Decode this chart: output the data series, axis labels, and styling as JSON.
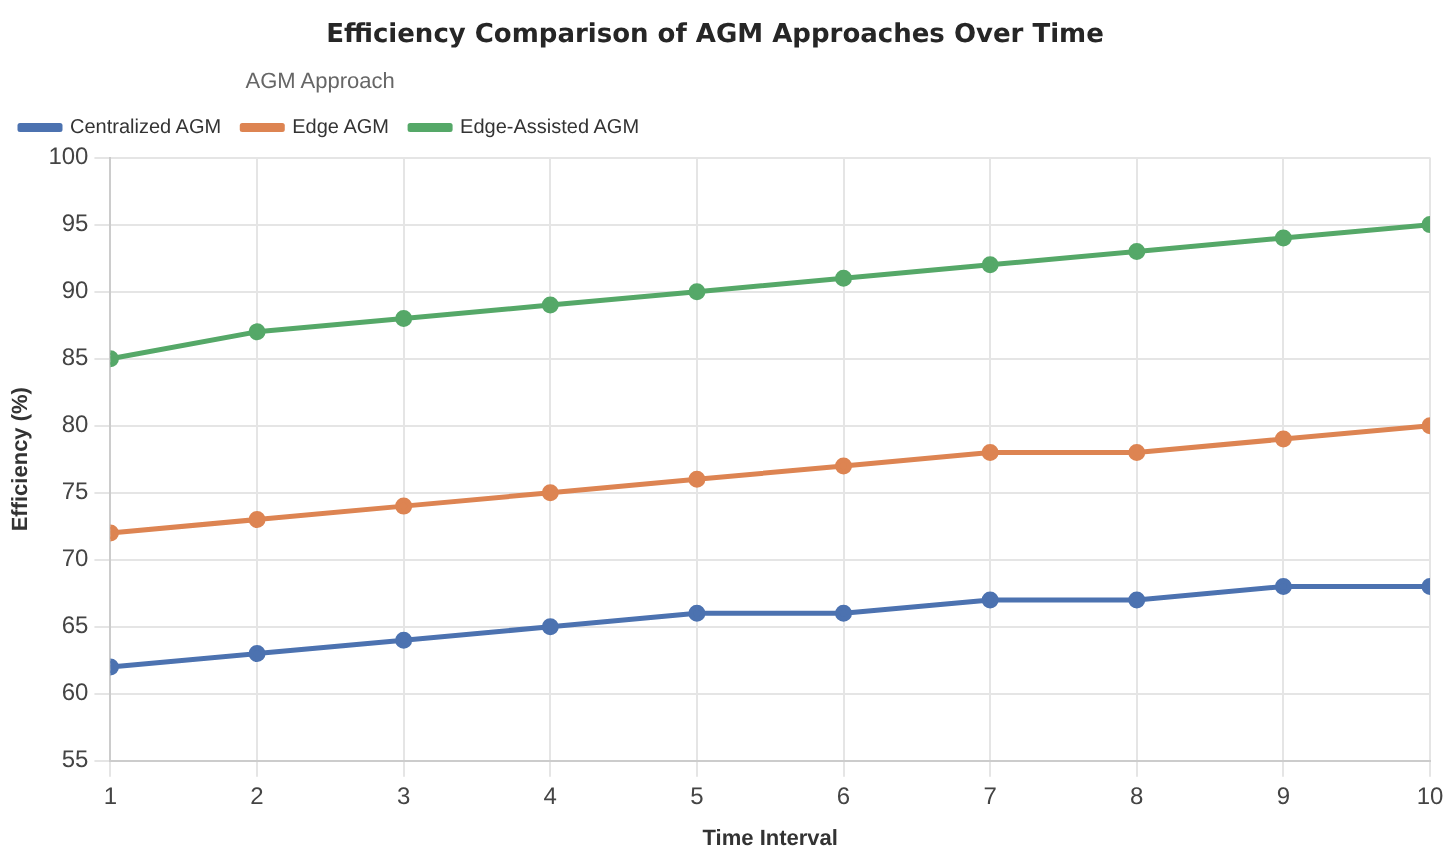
{
  "chart_data": {
    "type": "line",
    "title": "Efficiency Comparison of AGM Approaches Over Time",
    "xlabel": "Time Interval",
    "ylabel": "Efficiency (%)",
    "legend_title": "AGM Approach",
    "x": [
      1,
      2,
      3,
      4,
      5,
      6,
      7,
      8,
      9,
      10
    ],
    "xlim": [
      1,
      10
    ],
    "xticks": [
      1,
      2,
      3,
      4,
      5,
      6,
      7,
      8,
      9,
      10
    ],
    "ylim": [
      55,
      100
    ],
    "yticks": [
      55,
      60,
      65,
      70,
      75,
      80,
      85,
      90,
      95,
      100
    ],
    "series": [
      {
        "name": "Centralized AGM",
        "color": "#4c72b0",
        "values": [
          62,
          63,
          64,
          65,
          66,
          66,
          67,
          67,
          68,
          68
        ]
      },
      {
        "name": "Edge AGM",
        "color": "#dd8452",
        "values": [
          72,
          73,
          74,
          75,
          76,
          77,
          78,
          78,
          79,
          80
        ]
      },
      {
        "name": "Edge-Assisted AGM",
        "color": "#55a868",
        "values": [
          85,
          87,
          88,
          89,
          90,
          91,
          92,
          93,
          94,
          95
        ]
      }
    ],
    "grid": true,
    "legend": "top left",
    "marker": "circle",
    "line_style": "solid"
  }
}
